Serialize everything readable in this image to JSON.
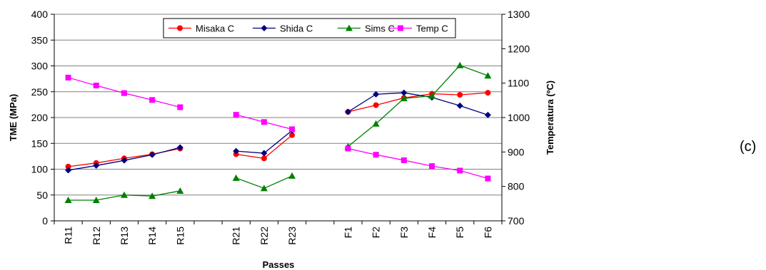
{
  "panel_label": "(c)",
  "chart_data": {
    "type": "line",
    "xlabel": "Passes",
    "ylabel": "TME (MPa)",
    "y2label": "Temperatura (ºC)",
    "categories": [
      "R11",
      "R12",
      "R13",
      "R14",
      "R15",
      "",
      "R21",
      "R22",
      "R23",
      "",
      "F1",
      "F2",
      "F3",
      "F4",
      "F5",
      "F6"
    ],
    "ylim": [
      0,
      400
    ],
    "y_ticks": [
      0,
      50,
      100,
      150,
      200,
      250,
      300,
      350,
      400
    ],
    "y2lim": [
      700,
      1300
    ],
    "y2_ticks": [
      700,
      800,
      900,
      1000,
      1100,
      1200,
      1300
    ],
    "grid": true,
    "legend_position": "top-center",
    "series": [
      {
        "name": "Misaka C",
        "axis": "left",
        "color": "#ff0000",
        "marker": "circle",
        "values": [
          105,
          112,
          121,
          129,
          140,
          null,
          129,
          121,
          166,
          null,
          211,
          224,
          238,
          246,
          244,
          248
        ]
      },
      {
        "name": "Shida C",
        "axis": "left",
        "color": "#000080",
        "marker": "diamond",
        "values": [
          98,
          107,
          117,
          128,
          142,
          null,
          135,
          131,
          175,
          null,
          211,
          245,
          248,
          239,
          223,
          205
        ]
      },
      {
        "name": "Sims C",
        "axis": "left",
        "color": "#008000",
        "marker": "triangle",
        "values": [
          40,
          40,
          50,
          48,
          58,
          null,
          83,
          63,
          87,
          null,
          144,
          188,
          237,
          242,
          301,
          281
        ]
      },
      {
        "name": "Temp C",
        "axis": "right",
        "color": "#ff00ff",
        "marker": "square",
        "values": [
          1116,
          1093,
          1071,
          1051,
          1030,
          null,
          1008,
          987,
          966,
          null,
          910,
          892,
          876,
          859,
          846,
          823
        ]
      }
    ]
  }
}
